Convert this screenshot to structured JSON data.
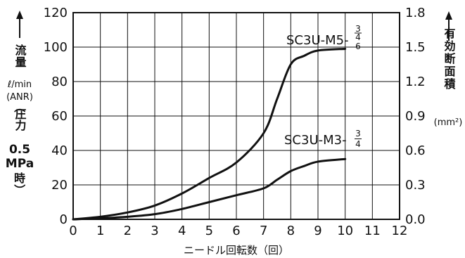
{
  "chart_data": {
    "type": "line",
    "xlabel": "ニードル回転数（回）",
    "x_ticks": [
      0,
      1,
      2,
      3,
      4,
      5,
      6,
      7,
      8,
      9,
      10,
      11,
      12
    ],
    "xlim": [
      0,
      12
    ],
    "ylim": [
      0,
      120
    ],
    "y_ticks": [
      0,
      20,
      40,
      60,
      80,
      100,
      120
    ],
    "y2lim": [
      0,
      1.8
    ],
    "y2_ticks": [
      "0.0",
      "0.3",
      "0.6",
      "0.9",
      "1.2",
      "1.5",
      "1.8"
    ],
    "ylabel": {
      "title": "流量",
      "unit": "ℓ/min",
      "standard": "(ANR)",
      "paren_open": "（",
      "pressure_label": "圧力",
      "pressure_value": "0.5",
      "pressure_unit": "MPa",
      "time_label": "時",
      "paren_close": "）"
    },
    "y2label": {
      "title": "有効断面積",
      "unit": "(mm²)"
    },
    "grid": true,
    "series": [
      {
        "name": "SC3U-M5-",
        "name_suffix": [
          "3",
          "4",
          "6"
        ],
        "x": [
          0,
          1,
          2,
          3,
          4,
          5,
          6,
          7,
          7.5,
          8,
          8.5,
          9,
          10
        ],
        "y": [
          0,
          1.5,
          4,
          8,
          15,
          24,
          33,
          50,
          70,
          90,
          95,
          98,
          99
        ]
      },
      {
        "name": "SC3U-M3-",
        "name_suffix": [
          "3",
          "4"
        ],
        "x": [
          0,
          1,
          2,
          3,
          4,
          5,
          6,
          7,
          7.5,
          8,
          8.5,
          9,
          10
        ],
        "y": [
          0,
          0.6,
          1.5,
          3,
          6,
          10,
          14,
          18,
          23,
          28,
          31,
          33.5,
          35
        ]
      }
    ]
  }
}
